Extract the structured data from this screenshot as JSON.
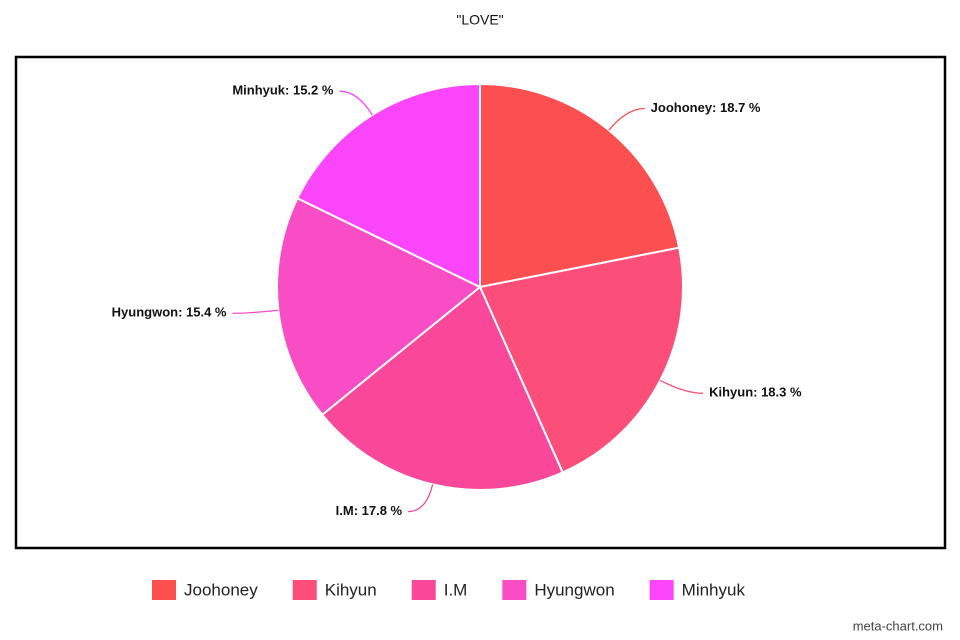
{
  "chart_data": {
    "type": "pie",
    "title": "\"LOVE\"",
    "categories": [
      "Joohoney",
      "Kihyun",
      "I.M",
      "Hyungwon",
      "Minhyuk"
    ],
    "values": [
      18.7,
      18.3,
      17.8,
      15.4,
      15.2
    ],
    "value_labels": [
      "Joohoney: 18.7 %",
      "Kihyun: 18.3 %",
      "I.M: 17.8 %",
      "Hyungwon: 15.4 %",
      "Minhyuk: 15.2 %"
    ],
    "colors": [
      "#fc4f4f",
      "#fb4f79",
      "#f9489a",
      "#f84dc4",
      "#fb45fb"
    ],
    "legend": "bottom",
    "watermark": "meta-chart.com"
  }
}
